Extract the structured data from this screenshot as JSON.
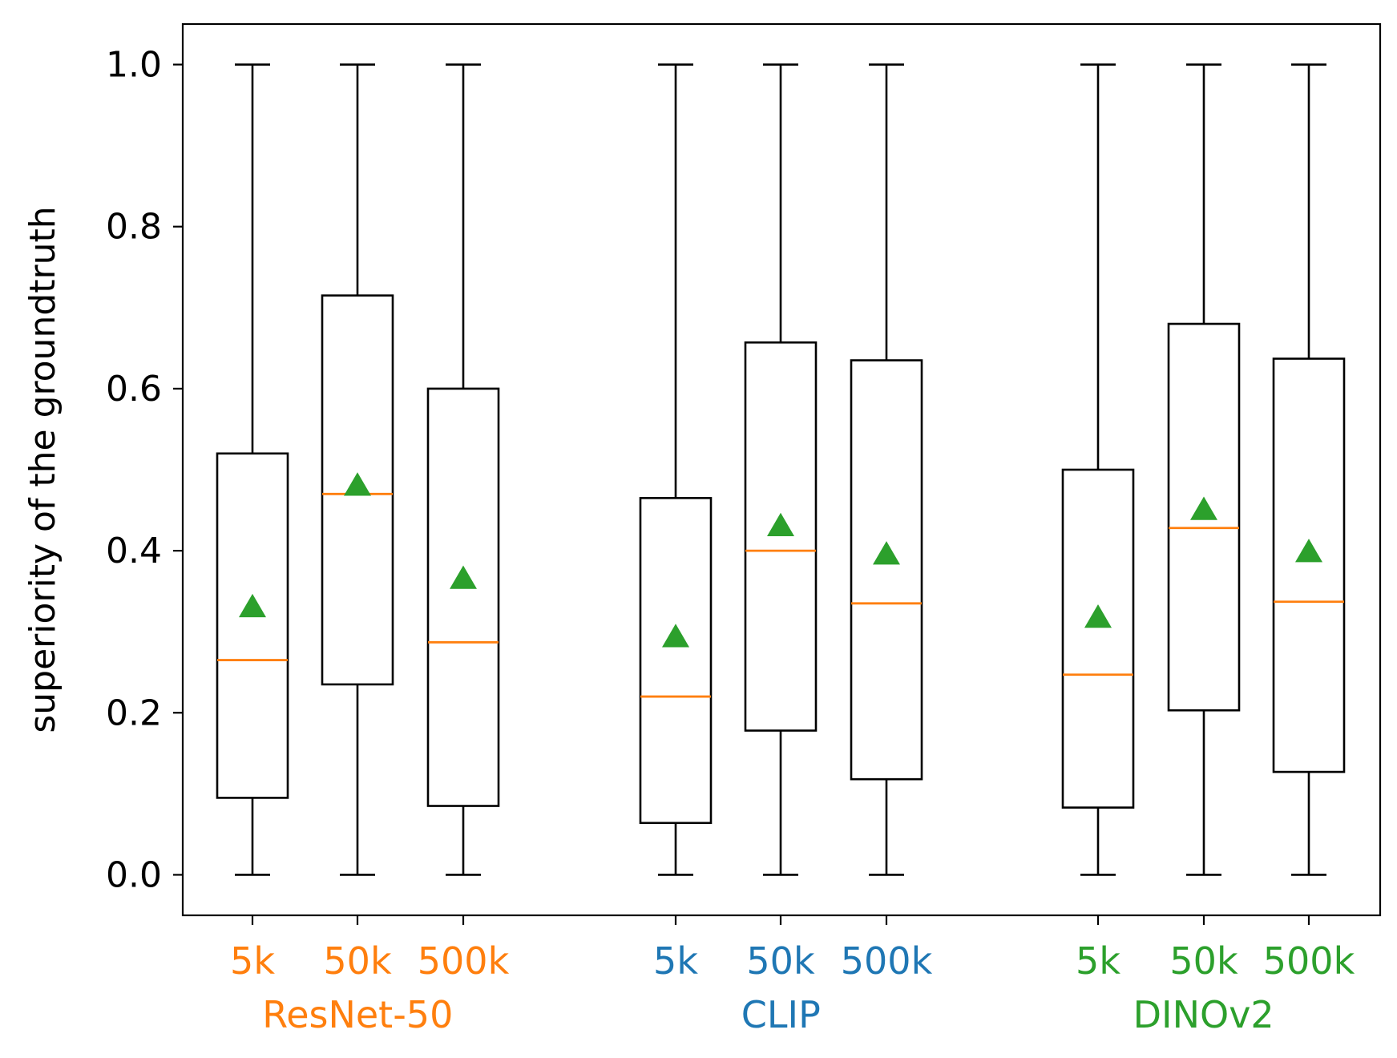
{
  "chart_data": {
    "type": "box",
    "ylabel": "superiority of the groundtruth",
    "ylim": [
      -0.05,
      1.05
    ],
    "yticks": [
      "0.0",
      "0.2",
      "0.4",
      "0.6",
      "0.8",
      "1.0"
    ],
    "ytick_values": [
      0.0,
      0.2,
      0.4,
      0.6,
      0.8,
      1.0
    ],
    "grid": false,
    "median_color": "#ff7f0e",
    "mean_color": "#2ca02c",
    "groups": [
      {
        "name": "ResNet-50",
        "color": "#ff7f0e",
        "boxes": [
          {
            "label": "5k",
            "whisker_low": 0.0,
            "q1": 0.095,
            "median": 0.265,
            "q3": 0.52,
            "whisker_high": 1.0,
            "mean": 0.33
          },
          {
            "label": "50k",
            "whisker_low": 0.0,
            "q1": 0.235,
            "median": 0.47,
            "q3": 0.715,
            "whisker_high": 1.0,
            "mean": 0.48
          },
          {
            "label": "500k",
            "whisker_low": 0.0,
            "q1": 0.085,
            "median": 0.287,
            "q3": 0.6,
            "whisker_high": 1.0,
            "mean": 0.365
          }
        ]
      },
      {
        "name": "CLIP",
        "color": "#1f77b4",
        "boxes": [
          {
            "label": "5k",
            "whisker_low": 0.0,
            "q1": 0.064,
            "median": 0.22,
            "q3": 0.465,
            "whisker_high": 1.0,
            "mean": 0.293
          },
          {
            "label": "50k",
            "whisker_low": 0.0,
            "q1": 0.178,
            "median": 0.4,
            "q3": 0.657,
            "whisker_high": 1.0,
            "mean": 0.43
          },
          {
            "label": "500k",
            "whisker_low": 0.0,
            "q1": 0.118,
            "median": 0.335,
            "q3": 0.635,
            "whisker_high": 1.0,
            "mean": 0.395
          }
        ]
      },
      {
        "name": "DINOv2",
        "color": "#2ca02c",
        "boxes": [
          {
            "label": "5k",
            "whisker_low": 0.0,
            "q1": 0.083,
            "median": 0.247,
            "q3": 0.5,
            "whisker_high": 1.0,
            "mean": 0.317
          },
          {
            "label": "50k",
            "whisker_low": 0.0,
            "q1": 0.203,
            "median": 0.428,
            "q3": 0.68,
            "whisker_high": 1.0,
            "mean": 0.45
          },
          {
            "label": "500k",
            "whisker_low": 0.0,
            "q1": 0.127,
            "median": 0.337,
            "q3": 0.637,
            "whisker_high": 1.0,
            "mean": 0.398
          }
        ]
      }
    ]
  }
}
